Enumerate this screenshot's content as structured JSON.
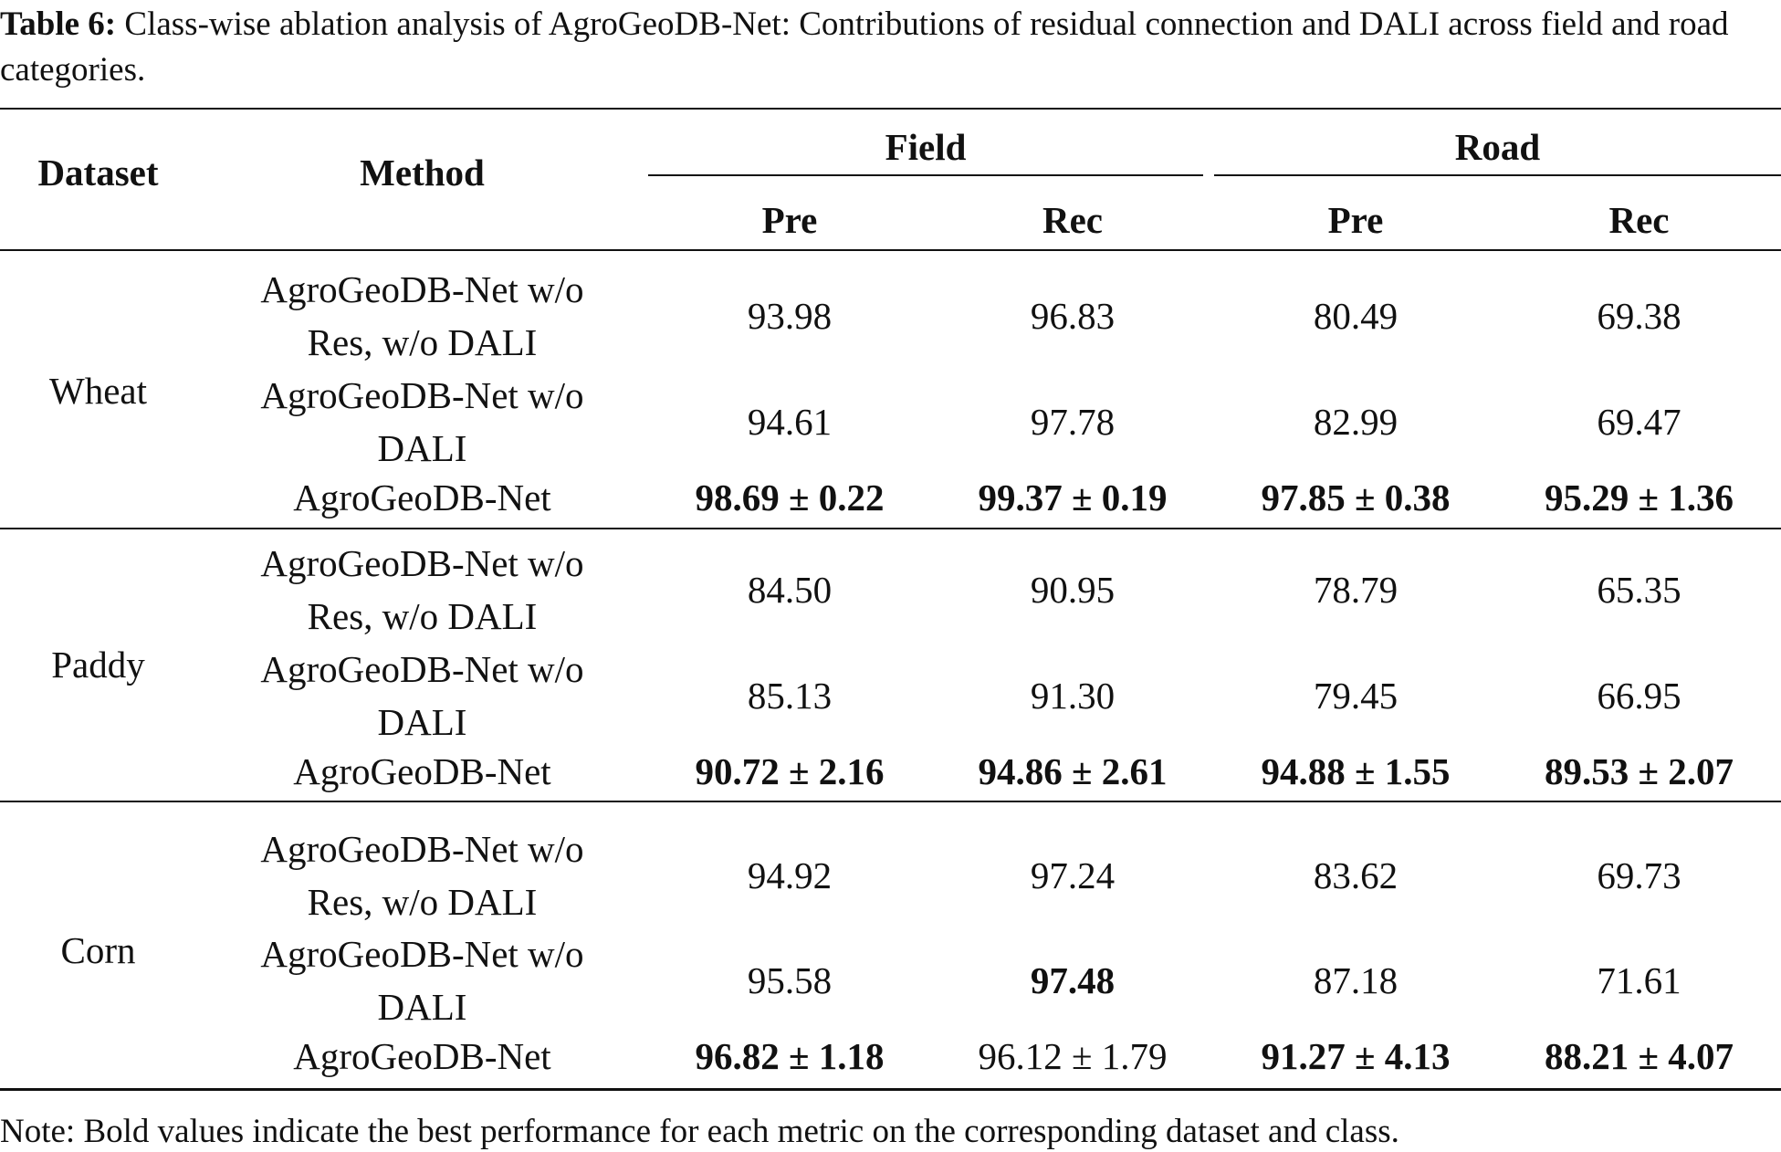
{
  "caption": {
    "label": "Table 6:",
    "text": "Class-wise ablation analysis of AgroGeoDB-Net: Contributions of residual connection and DALI across field and road categories."
  },
  "headers": {
    "dataset": "Dataset",
    "method": "Method",
    "field": "Field",
    "road": "Road",
    "field_pre": "Pre",
    "field_rec": "Rec",
    "road_pre": "Pre",
    "road_rec": "Rec"
  },
  "groups": [
    {
      "dataset": "Wheat",
      "rows": [
        {
          "method": [
            "AgroGeoDB-Net w/o",
            "Res, w/o DALI"
          ],
          "values": [
            "93.98",
            "96.83",
            "80.49",
            "69.38"
          ],
          "bold": [
            false,
            false,
            false,
            false
          ]
        },
        {
          "method": [
            "AgroGeoDB-Net w/o",
            "DALI"
          ],
          "values": [
            "94.61",
            "97.78",
            "82.99",
            "69.47"
          ],
          "bold": [
            false,
            false,
            false,
            false
          ]
        },
        {
          "method": [
            "AgroGeoDB-Net"
          ],
          "values": [
            "98.69 ± 0.22",
            "99.37 ± 0.19",
            "97.85 ± 0.38",
            "95.29 ± 1.36"
          ],
          "bold": [
            true,
            true,
            true,
            true
          ]
        }
      ]
    },
    {
      "dataset": "Paddy",
      "rows": [
        {
          "method": [
            "AgroGeoDB-Net w/o",
            "Res, w/o DALI"
          ],
          "values": [
            "84.50",
            "90.95",
            "78.79",
            "65.35"
          ],
          "bold": [
            false,
            false,
            false,
            false
          ]
        },
        {
          "method": [
            "AgroGeoDB-Net w/o",
            "DALI"
          ],
          "values": [
            "85.13",
            "91.30",
            "79.45",
            "66.95"
          ],
          "bold": [
            false,
            false,
            false,
            false
          ]
        },
        {
          "method": [
            "AgroGeoDB-Net"
          ],
          "values": [
            "90.72 ± 2.16",
            "94.86 ± 2.61",
            "94.88 ± 1.55",
            "89.53 ± 2.07"
          ],
          "bold": [
            true,
            true,
            true,
            true
          ]
        }
      ]
    },
    {
      "dataset": "Corn",
      "rows": [
        {
          "method": [
            "AgroGeoDB-Net w/o",
            "Res, w/o DALI"
          ],
          "values": [
            "94.92",
            "97.24",
            "83.62",
            "69.73"
          ],
          "bold": [
            false,
            false,
            false,
            false
          ]
        },
        {
          "method": [
            "AgroGeoDB-Net w/o",
            "DALI"
          ],
          "values": [
            "95.58",
            "97.48",
            "87.18",
            "71.61"
          ],
          "bold": [
            false,
            true,
            false,
            false
          ]
        },
        {
          "method": [
            "AgroGeoDB-Net"
          ],
          "values": [
            "96.82 ± 1.18",
            "96.12 ± 1.79",
            "91.27 ± 4.13",
            "88.21 ± 4.07"
          ],
          "bold": [
            true,
            false,
            true,
            true
          ]
        }
      ]
    }
  ],
  "note": "Note: Bold values indicate the best performance for each metric on the corresponding dataset and class."
}
